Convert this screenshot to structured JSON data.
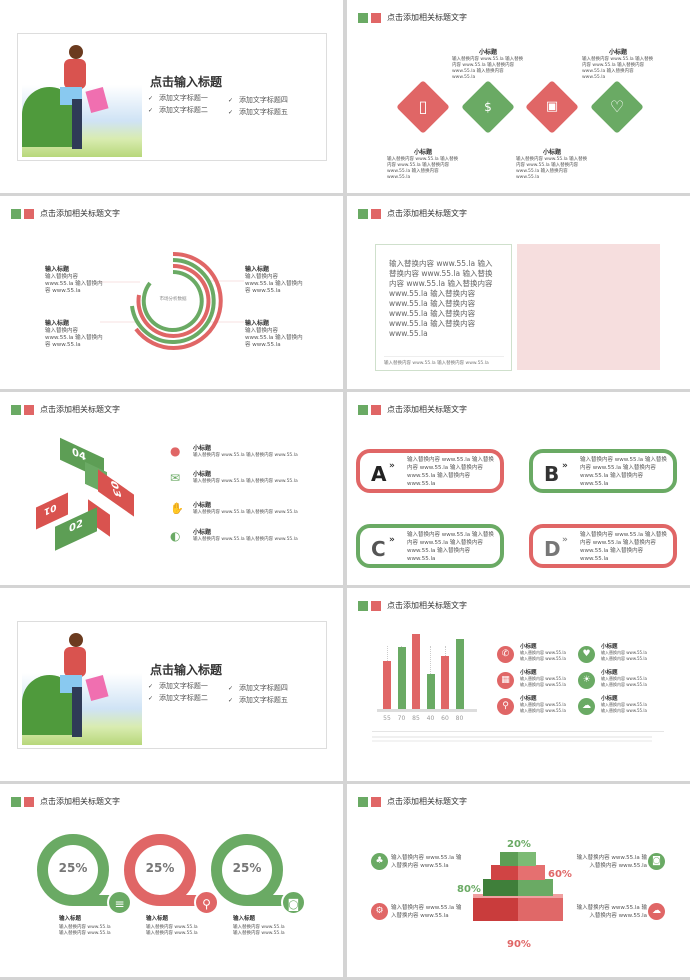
{
  "colors": {
    "green": "#6aaa64",
    "red": "#e06666",
    "pink": "#f6dede"
  },
  "header_title": "点击添加相关标题文字",
  "cover": {
    "title": "点击输入标题",
    "bullets": [
      "添加文字标题一",
      "添加文字标题二",
      "添加文字标题四",
      "添加文字标题五"
    ]
  },
  "diamonds": {
    "items": [
      {
        "title": "小标题",
        "text": "输入替换内容 www.55.la 输入替换内容 www.55.la 输入替换内容 www.55.la 输入替换内容 www.55.la",
        "icon": "tablet-icon",
        "color": "red"
      },
      {
        "title": "小标题",
        "text": "输入替换内容 www.55.la 输入替换内容 www.55.la 输入替换内容 www.55.la 输入替换内容 www.55.la",
        "icon": "money-icon",
        "color": "green"
      },
      {
        "title": "小标题",
        "text": "输入替换内容 www.55.la 输入替换内容 www.55.la 输入替换内容 www.55.la 输入替换内容 www.55.la",
        "icon": "wallet-icon",
        "color": "red"
      },
      {
        "title": "小标题",
        "text": "输入替换内容 www.55.la 输入替换内容 www.55.la 输入替换内容 www.55.la 输入替换内容 www.55.la",
        "icon": "heart-icon",
        "color": "green"
      }
    ]
  },
  "rings": {
    "center": "市场分析数据",
    "items": [
      {
        "title": "输入标题",
        "text": "输入替换内容 www.55.la 输入替换内容 www.55.la"
      },
      {
        "title": "输入标题",
        "text": "输入替换内容 www.55.la 输入替换内容 www.55.la"
      },
      {
        "title": "输入标题",
        "text": "输入替换内容 www.55.la 输入替换内容 www.55.la"
      },
      {
        "title": "输入标题",
        "text": "输入替换内容 www.55.la 输入替换内容 www.55.la"
      }
    ]
  },
  "textbox": {
    "body": "输入替换内容 www.55.la 输入替换内容 www.55.la 输入替换内容 www.55.la 输入替换内容 www.55.la 输入替换内容 www.55.la 输入替换内容 www.55.la 输入替换内容 www.55.la 输入替换内容 www.55.la",
    "footer": "输入替换内容 www.55.la 输入替换内容 www.55.la"
  },
  "steps": {
    "numbers": [
      "01",
      "02",
      "03",
      "04"
    ],
    "items": [
      {
        "title": "小标题",
        "text": "输入替换内容 www.55.la 输入替换内容 www.55.la",
        "icon": "chat-bubble-icon"
      },
      {
        "title": "小标题",
        "text": "输入替换内容 www.55.la 输入替换内容 www.55.la",
        "icon": "envelope-icon"
      },
      {
        "title": "小标题",
        "text": "输入替换内容 www.55.la 输入替换内容 www.55.la",
        "icon": "handshake-icon"
      },
      {
        "title": "小标题",
        "text": "输入替换内容 www.55.la 输入替换内容 www.55.la",
        "icon": "phone-24h-icon"
      }
    ]
  },
  "cards": [
    {
      "letter": "A",
      "text": "输入替换内容 www.55.la 输入替换内容 www.55.la 输入替换内容 www.55.la 输入替换内容 www.55.la"
    },
    {
      "letter": "B",
      "text": "输入替换内容 www.55.la 输入替换内容 www.55.la 输入替换内容 www.55.la 输入替换内容 www.55.la"
    },
    {
      "letter": "C",
      "text": "输入替换内容 www.55.la 输入替换内容 www.55.la 输入替换内容 www.55.la 输入替换内容 www.55.la"
    },
    {
      "letter": "D",
      "text": "输入替换内容 www.55.la 输入替换内容 www.55.la 输入替换内容 www.55.la 输入替换内容 www.55.la"
    }
  ],
  "chart_data": {
    "type": "bar",
    "categories": [
      "55",
      "70",
      "85",
      "40",
      "60",
      "80"
    ],
    "values": [
      55,
      70,
      85,
      40,
      60,
      80
    ],
    "colors": [
      "red",
      "green",
      "red",
      "green",
      "red",
      "green"
    ],
    "xlabel": "",
    "ylabel": ""
  },
  "chart_side": {
    "items": [
      {
        "title": "小标题",
        "text": "输入替换内容 www.55.la 输入替换内容 www.55.la",
        "icon": "phone-icon",
        "color": "red"
      },
      {
        "title": "小标题",
        "text": "输入替换内容 www.55.la 输入替换内容 www.55.la",
        "icon": "calendar-icon",
        "color": "red"
      },
      {
        "title": "小标题",
        "text": "输入替换内容 www.55.la 输入替换内容 www.55.la",
        "icon": "location-pin-icon",
        "color": "red"
      },
      {
        "title": "小标题",
        "text": "输入替换内容 www.55.la 输入替换内容 www.55.la",
        "icon": "chat-heart-icon",
        "color": "green"
      },
      {
        "title": "小标题",
        "text": "输入替换内容 www.55.la 输入替换内容 www.55.la",
        "icon": "lightbulb-icon",
        "color": "green"
      },
      {
        "title": "小标题",
        "text": "输入替换内容 www.55.la 输入替换内容 www.55.la",
        "icon": "cloud-download-icon",
        "color": "green"
      }
    ]
  },
  "percent_rings": [
    {
      "value": "25%",
      "title": "输入标题",
      "text": "输入替换内容 www.55.la 输入替换内容 www.55.la",
      "icon": "database-icon",
      "color": "green"
    },
    {
      "value": "25%",
      "title": "输入标题",
      "text": "输入替换内容 www.55.la 输入替换内容 www.55.la",
      "icon": "search-icon",
      "color": "red"
    },
    {
      "value": "25%",
      "title": "输入标题",
      "text": "输入替换内容 www.55.la 输入替换内容 www.55.la",
      "icon": "camera-icon",
      "color": "green"
    }
  ],
  "pyramid": {
    "levels": [
      "20%",
      "60%",
      "80%",
      "90%"
    ],
    "items": [
      {
        "text": "输入替换内容 www.55.la 输入替换内容 www.55.la",
        "icon": "org-chart-icon",
        "color": "green"
      },
      {
        "text": "输入替换内容 www.55.la 输入替换内容 www.55.la",
        "icon": "gears-icon",
        "color": "red"
      },
      {
        "text": "输入替换内容 www.55.la 输入替换内容 www.55.la",
        "icon": "camera-icon",
        "color": "green"
      },
      {
        "text": "输入替换内容 www.55.la 输入替换内容 www.55.la",
        "icon": "cloud-upload-icon",
        "color": "red"
      }
    ]
  }
}
